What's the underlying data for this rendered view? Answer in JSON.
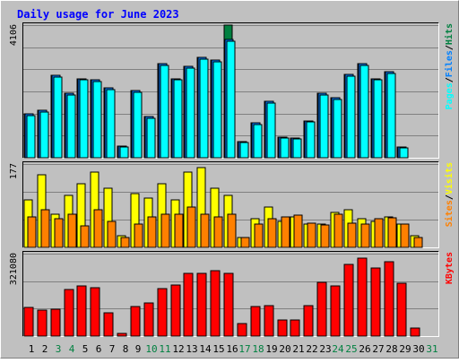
{
  "title": "Daily usage for June 2023",
  "colors": {
    "page_bg": "#c0c0c0",
    "plot_bg": "#c0c0c0",
    "grid": "#808080",
    "title": "#0000ff",
    "pages": "#00ffff",
    "files": "#0080ff",
    "hits": "#008040",
    "visits": "#ffff00",
    "sites": "#ff8000",
    "kbytes": "#ff0000",
    "weekend_day": "#008040",
    "weekday": "#000000"
  },
  "chart_data": [
    {
      "type": "bar",
      "panel": "pages-files-hits",
      "axis_max_label": "4106",
      "ylim": [
        0,
        4106
      ],
      "grid": true,
      "legend": [
        "Pages",
        "/",
        "Files",
        "/",
        "Hits"
      ],
      "categories": [
        "1",
        "2",
        "3",
        "4",
        "5",
        "6",
        "7",
        "8",
        "9",
        "10",
        "11",
        "12",
        "13",
        "14",
        "15",
        "16",
        "17",
        "18",
        "19",
        "20",
        "21",
        "22",
        "23",
        "24",
        "25",
        "26",
        "27",
        "28",
        "29",
        "30",
        "31"
      ],
      "series": [
        {
          "name": "Hits",
          "values": [
            1350,
            1470,
            2550,
            2000,
            2450,
            2400,
            2170,
            350,
            2070,
            1270,
            2900,
            2450,
            2830,
            3100,
            3020,
            4106,
            500,
            1070,
            1750,
            650,
            600,
            1140,
            2000,
            1850,
            2570,
            2900,
            2450,
            2650,
            320,
            0,
            0
          ]
        },
        {
          "name": "Files",
          "values": [
            1350,
            1470,
            2550,
            2000,
            2450,
            2400,
            2170,
            350,
            2070,
            1270,
            2900,
            2450,
            2830,
            3100,
            3020,
            3650,
            500,
            1070,
            1750,
            650,
            600,
            1140,
            2000,
            1850,
            2570,
            2900,
            2450,
            2650,
            320,
            0,
            0
          ]
        },
        {
          "name": "Pages",
          "values": [
            1300,
            1420,
            2500,
            1950,
            2400,
            2350,
            2120,
            330,
            2020,
            1220,
            2850,
            2400,
            2780,
            3050,
            2970,
            3600,
            480,
            1030,
            1700,
            620,
            570,
            1100,
            1950,
            1800,
            2520,
            2850,
            2400,
            2600,
            300,
            0,
            0
          ]
        }
      ]
    },
    {
      "type": "bar",
      "panel": "visits-sites",
      "axis_max_label": "177",
      "ylim": [
        0,
        177
      ],
      "grid": true,
      "legend": [
        "Sites",
        "/",
        "Visits"
      ],
      "categories": [
        "1",
        "2",
        "3",
        "4",
        "5",
        "6",
        "7",
        "8",
        "9",
        "10",
        "11",
        "12",
        "13",
        "14",
        "15",
        "16",
        "17",
        "18",
        "19",
        "20",
        "21",
        "22",
        "23",
        "24",
        "25",
        "26",
        "27",
        "28",
        "29",
        "30",
        "31"
      ],
      "series": [
        {
          "name": "Visits",
          "values": [
            100,
            155,
            70,
            110,
            135,
            160,
            125,
            25,
            115,
            105,
            135,
            100,
            160,
            170,
            125,
            110,
            20,
            60,
            85,
            55,
            65,
            50,
            50,
            75,
            80,
            60,
            55,
            65,
            50,
            25,
            0
          ]
        },
        {
          "name": "Sites",
          "values": [
            65,
            80,
            60,
            70,
            45,
            80,
            55,
            20,
            50,
            65,
            70,
            70,
            85,
            70,
            65,
            70,
            20,
            50,
            60,
            65,
            68,
            52,
            48,
            70,
            52,
            50,
            60,
            62,
            50,
            20,
            0
          ]
        }
      ]
    },
    {
      "type": "bar",
      "panel": "kbytes",
      "axis_max_label": "321080",
      "ylim": [
        0,
        321080
      ],
      "grid": true,
      "legend": [
        "KBytes"
      ],
      "categories": [
        "1",
        "2",
        "3",
        "4",
        "5",
        "6",
        "7",
        "8",
        "9",
        "10",
        "11",
        "12",
        "13",
        "14",
        "15",
        "16",
        "17",
        "18",
        "19",
        "20",
        "21",
        "22",
        "23",
        "24",
        "25",
        "26",
        "27",
        "28",
        "29",
        "30",
        "31"
      ],
      "series": [
        {
          "name": "KBytes",
          "values": [
            110000,
            100000,
            105000,
            180000,
            195000,
            190000,
            90000,
            10000,
            115000,
            130000,
            185000,
            200000,
            245000,
            245000,
            255000,
            245000,
            50000,
            115000,
            120000,
            62000,
            62000,
            120000,
            210000,
            195000,
            280000,
            305000,
            265000,
            290000,
            205000,
            30000,
            0
          ]
        }
      ]
    }
  ],
  "x_axis": {
    "labels": [
      "1",
      "2",
      "3",
      "4",
      "5",
      "6",
      "7",
      "8",
      "9",
      "10",
      "11",
      "12",
      "13",
      "14",
      "15",
      "16",
      "17",
      "18",
      "19",
      "20",
      "21",
      "22",
      "23",
      "24",
      "25",
      "26",
      "27",
      "28",
      "29",
      "30",
      "31"
    ],
    "weekend_indices": [
      2,
      3,
      9,
      10,
      16,
      17,
      23,
      24,
      30
    ]
  }
}
